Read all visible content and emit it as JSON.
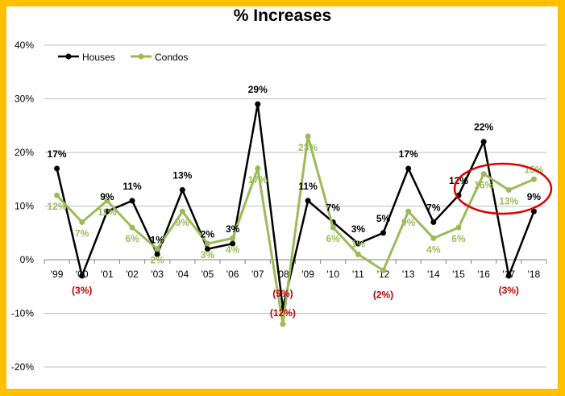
{
  "chart_data": {
    "type": "line",
    "title": "% Increases",
    "categories": [
      "'99",
      "'00",
      "'01",
      "'02",
      "'03",
      "'04",
      "'05",
      "'06",
      "'07",
      "'08",
      "'09",
      "'10",
      "'11",
      "'12",
      "'13",
      "'14",
      "'15",
      "'16",
      "'17",
      "'18"
    ],
    "series": [
      {
        "name": "Houses",
        "color": "#000000",
        "values": [
          17,
          -3,
          9,
          11,
          1,
          13,
          2,
          3,
          29,
          -9,
          11,
          7,
          3,
          5,
          17,
          7,
          12,
          22,
          -3,
          9
        ]
      },
      {
        "name": "Condos",
        "color": "#9BBB59",
        "values": [
          12,
          7,
          11,
          6,
          2,
          9,
          3,
          4,
          17,
          -12,
          23,
          6,
          1,
          -2,
          9,
          4,
          6,
          16,
          13,
          15
        ]
      }
    ],
    "data_labels": {
      "Houses": [
        "17%",
        "(3%)",
        "9%",
        "11%",
        "1%",
        "13%",
        "2%",
        "3%",
        "29%",
        "(9%)",
        "11%",
        "7%",
        "3%",
        "5%",
        "17%",
        "7%",
        "12%",
        "22%",
        "(3%)",
        "9%"
      ],
      "Condos": [
        "12%",
        "7%",
        "11%",
        "6%",
        "2%",
        "9%",
        "3%",
        "4%",
        "17%",
        "(12%)",
        "23%",
        "6%",
        "1%",
        "(2%)",
        "9%",
        "4%",
        "6%",
        "16%",
        "13%",
        "15%"
      ]
    },
    "negative_label_color": "#C00000",
    "ylim": [
      -20,
      40
    ],
    "yticks": [
      "-20%",
      "-10%",
      "0%",
      "10%",
      "20%",
      "30%",
      "40%"
    ],
    "grid": true,
    "legend": "top-left",
    "annotation": {
      "shape": "red ellipse",
      "color": "#E00000",
      "highlights": [
        "'16",
        "'17",
        "'18"
      ],
      "series": "Condos"
    },
    "background_color": "#FFC000"
  }
}
